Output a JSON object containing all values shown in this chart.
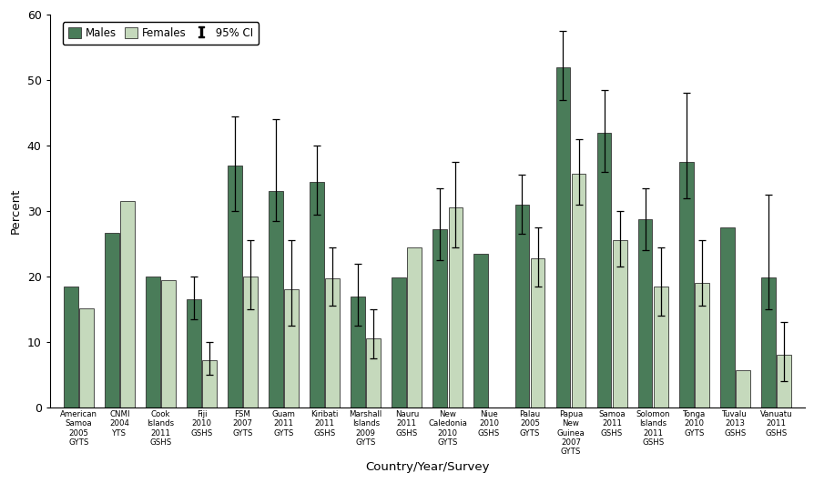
{
  "categories": [
    "American\nSamoa\n2005\nGYTS",
    "CNMI\n2004\nYTS",
    "Cook\nIslands\n2011\nGSHS",
    "Fiji\n2010\nGSHS",
    "FSM\n2007\nGYTS",
    "Guam\n2011\nGYTS",
    "Kiribati\n2011\nGSHS",
    "Marshall\nIslands\n2009\nGYTS",
    "Nauru\n2011\nGSHS",
    "New\nCaledonia\n2010\nGYTS",
    "Niue\n2010\nGSHS",
    "Palau\n2005\nGYTS",
    "Papua\nNew\nGuinea\n2007\nGYTS",
    "Samoa\n2011\nGSHS",
    "Solomon\nIslands\n2011\nGSHS",
    "Tonga\n2010\nGYTS",
    "Tuvalu\n2013\nGSHS",
    "Vanuatu\n2011\nGSHS"
  ],
  "males": [
    18.5,
    26.7,
    20.0,
    16.5,
    37.0,
    33.0,
    34.5,
    17.0,
    19.8,
    27.2,
    23.5,
    31.0,
    52.0,
    42.0,
    28.7,
    37.5,
    27.5,
    19.8
  ],
  "females": [
    15.2,
    31.5,
    19.5,
    7.2,
    20.0,
    18.0,
    19.7,
    10.5,
    24.5,
    30.5,
    null,
    22.8,
    35.7,
    25.5,
    18.5,
    19.0,
    5.7,
    8.0
  ],
  "males_ci_low": [
    null,
    null,
    null,
    13.5,
    30.0,
    28.5,
    29.5,
    12.5,
    null,
    22.5,
    null,
    26.5,
    47.0,
    36.0,
    24.0,
    32.0,
    null,
    15.0
  ],
  "males_ci_high": [
    null,
    null,
    null,
    20.0,
    44.5,
    44.0,
    40.0,
    22.0,
    null,
    33.5,
    null,
    35.5,
    57.5,
    48.5,
    33.5,
    48.0,
    null,
    32.5
  ],
  "females_ci_low": [
    null,
    null,
    null,
    5.0,
    15.0,
    12.5,
    15.5,
    7.5,
    null,
    24.5,
    null,
    18.5,
    31.0,
    21.5,
    14.0,
    15.5,
    null,
    4.0
  ],
  "females_ci_high": [
    null,
    null,
    null,
    10.0,
    25.5,
    25.5,
    24.5,
    15.0,
    null,
    37.5,
    null,
    27.5,
    41.0,
    30.0,
    24.5,
    25.5,
    null,
    13.0
  ],
  "male_color": "#4a7c59",
  "female_color": "#c5d9bc",
  "bar_edge_color": "#333333",
  "ci_color": "black",
  "ylim": [
    0,
    60
  ],
  "yticks": [
    0,
    10,
    20,
    30,
    40,
    50,
    60
  ],
  "ylabel": "Percent",
  "xlabel": "Country/Year/Survey"
}
